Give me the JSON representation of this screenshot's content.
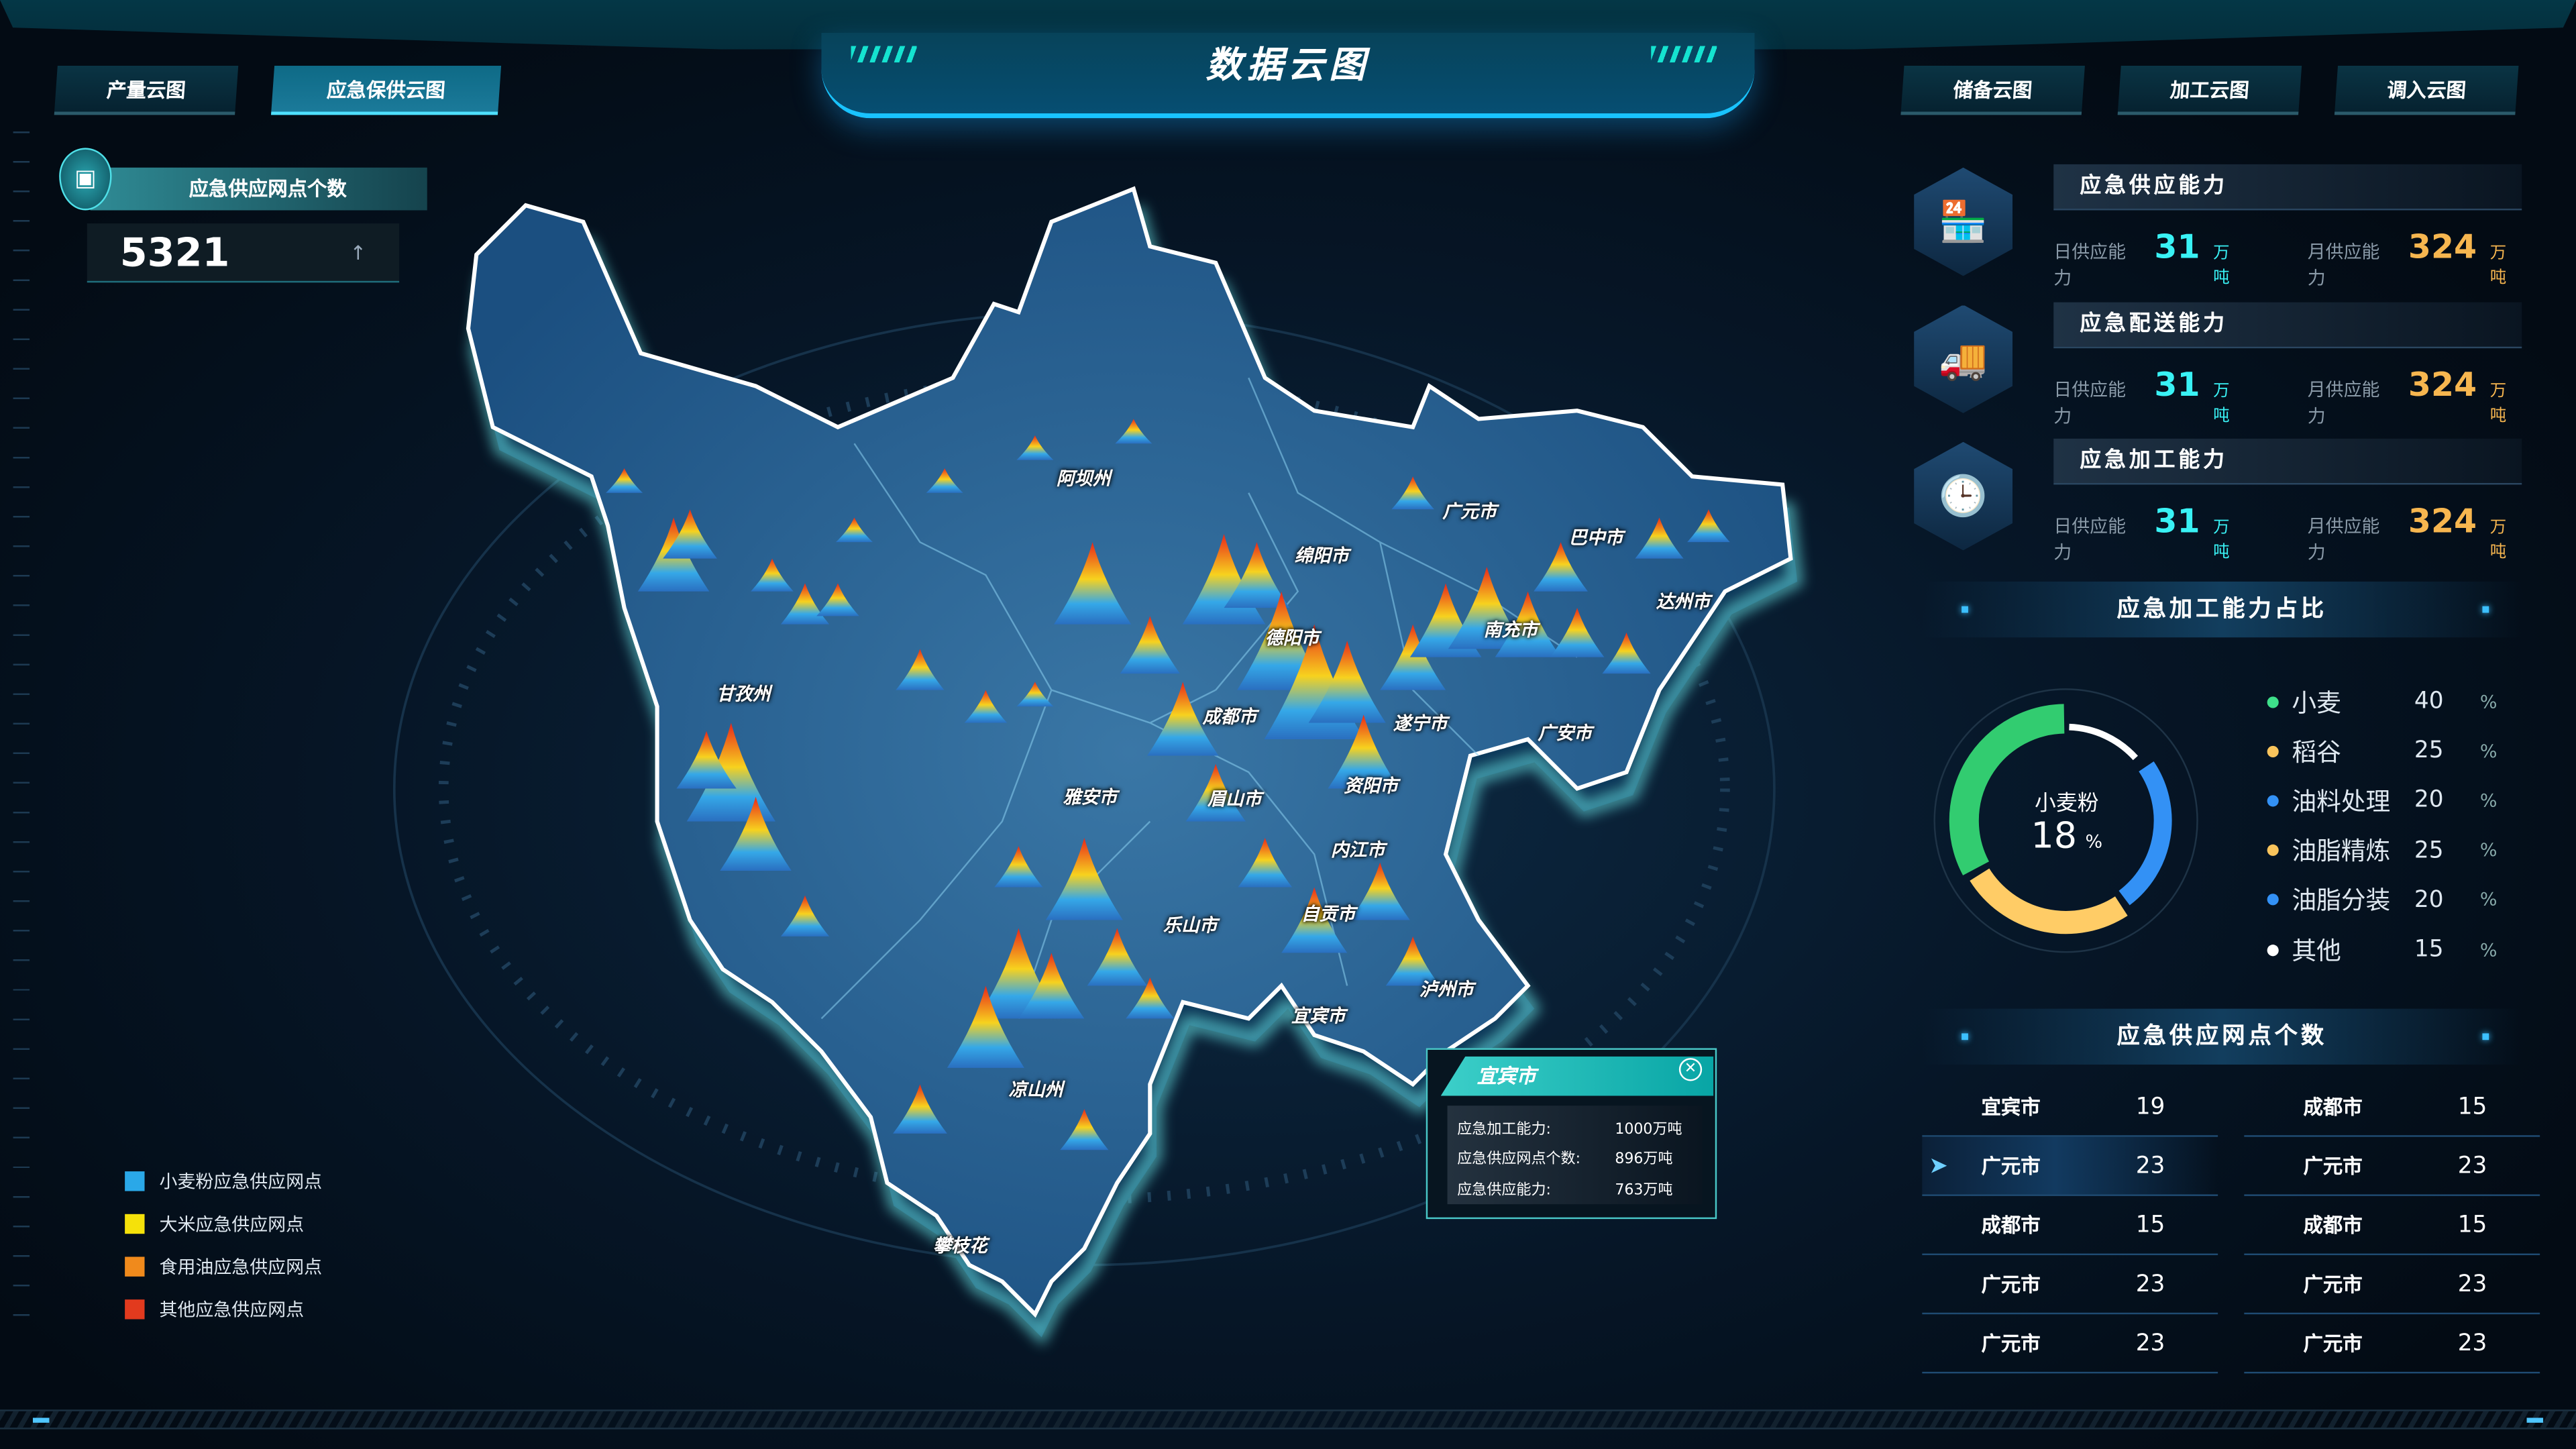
{
  "header": {
    "title": "数据云图",
    "tabs_left": [
      "产量云图",
      "应急保供云图"
    ],
    "tabs_right": [
      "储备云图",
      "加工云图",
      "调入云图"
    ],
    "active_tab": "应急保供云图"
  },
  "kpi": {
    "title": "应急供应网点个数",
    "value": "5321",
    "trend_icon": "arrow-up-icon"
  },
  "legend": [
    {
      "label": "小麦粉应急供应网点",
      "color": "#2aa8e8"
    },
    {
      "label": "大米应急供应网点",
      "color": "#f5e10a"
    },
    {
      "label": "食用油应急供应网点",
      "color": "#f08a1c"
    },
    {
      "label": "其他应急供应网点",
      "color": "#e23a1e"
    }
  ],
  "map": {
    "labels": [
      "阿坝州",
      "广元市",
      "巴中市",
      "绵阳市",
      "达州市",
      "德阳市",
      "南充市",
      "甘孜州",
      "成都市",
      "遂宁市",
      "广安市",
      "雅安市",
      "眉山市",
      "资阳市",
      "内江市",
      "乐山市",
      "自贡市",
      "泸州市",
      "宜宾市",
      "凉山州",
      "攀枝花"
    ]
  },
  "tooltip": {
    "city": "宜宾市",
    "rows": [
      {
        "k": "应急加工能力:",
        "v": "1000万吨"
      },
      {
        "k": "应急供应网点个数:",
        "v": "896万吨"
      },
      {
        "k": "应急供应能力:",
        "v": "763万吨"
      }
    ]
  },
  "capabilities": [
    {
      "title": "应急供应能力",
      "icon": "store-icon",
      "daily_label": "日供应能力",
      "daily": "31",
      "monthly_label": "月供应能力",
      "monthly": "324",
      "unit": "万吨"
    },
    {
      "title": "应急配送能力",
      "icon": "truck-icon",
      "daily_label": "日供应能力",
      "daily": "31",
      "monthly_label": "月供应能力",
      "monthly": "324",
      "unit": "万吨"
    },
    {
      "title": "应急加工能力",
      "icon": "clock-icon",
      "daily_label": "日供应能力",
      "daily": "31",
      "monthly_label": "月供应能力",
      "monthly": "324",
      "unit": "万吨"
    }
  ],
  "ratio": {
    "title": "应急加工能力占比",
    "center_label": "小麦粉",
    "center_value": "18",
    "center_unit": "%",
    "items": [
      {
        "name": "小麦",
        "value": "40",
        "color": "#3ee08a"
      },
      {
        "name": "稻谷",
        "value": "25",
        "color": "#f9c45c"
      },
      {
        "name": "油料处理",
        "value": "20",
        "color": "#3391f5"
      },
      {
        "name": "油脂精炼",
        "value": "25",
        "color": "#f9c45c"
      },
      {
        "name": "油脂分装",
        "value": "20",
        "color": "#3391f5"
      },
      {
        "name": "其他",
        "value": "15",
        "color": "#ffffff"
      }
    ],
    "unit": "%",
    "ring_colors": {
      "green": "#32cc70",
      "blue": "#3391f5",
      "yellow": "#ffcc66",
      "white": "#ffffff"
    }
  },
  "outlets": {
    "title": "应急供应网点个数",
    "left": [
      {
        "city": "宜宾市",
        "n": "19"
      },
      {
        "city": "广元市",
        "n": "23"
      },
      {
        "city": "成都市",
        "n": "15"
      },
      {
        "city": "广元市",
        "n": "23"
      },
      {
        "city": "广元市",
        "n": "23"
      }
    ],
    "right": [
      {
        "city": "成都市",
        "n": "15"
      },
      {
        "city": "广元市",
        "n": "23"
      },
      {
        "city": "成都市",
        "n": "15"
      },
      {
        "city": "广元市",
        "n": "23"
      },
      {
        "city": "广元市",
        "n": "23"
      }
    ],
    "selected_left_row": 1
  }
}
